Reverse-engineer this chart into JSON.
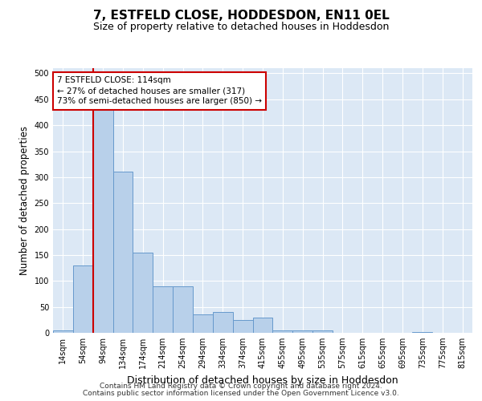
{
  "title": "7, ESTFELD CLOSE, HODDESDON, EN11 0EL",
  "subtitle": "Size of property relative to detached houses in Hoddesdon",
  "xlabel": "Distribution of detached houses by size in Hoddesdon",
  "ylabel": "Number of detached properties",
  "footer_line1": "Contains HM Land Registry data © Crown copyright and database right 2024.",
  "footer_line2": "Contains public sector information licensed under the Open Government Licence v3.0.",
  "bin_labels": [
    "14sqm",
    "54sqm",
    "94sqm",
    "134sqm",
    "174sqm",
    "214sqm",
    "254sqm",
    "294sqm",
    "334sqm",
    "374sqm",
    "415sqm",
    "455sqm",
    "495sqm",
    "535sqm",
    "575sqm",
    "615sqm",
    "655sqm",
    "695sqm",
    "735sqm",
    "775sqm",
    "815sqm"
  ],
  "bar_values": [
    5,
    130,
    430,
    310,
    155,
    90,
    90,
    35,
    40,
    25,
    30,
    5,
    5,
    5,
    0,
    0,
    0,
    0,
    2,
    0,
    0
  ],
  "bar_color": "#b8d0ea",
  "bar_edge_color": "#6699cc",
  "vline_x": 2.0,
  "vline_color": "#cc0000",
  "annotation_text": "7 ESTFELD CLOSE: 114sqm\n← 27% of detached houses are smaller (317)\n73% of semi-detached houses are larger (850) →",
  "annotation_box_color": "#ffffff",
  "annotation_box_edge": "#cc0000",
  "ylim": [
    0,
    510
  ],
  "yticks": [
    0,
    50,
    100,
    150,
    200,
    250,
    300,
    350,
    400,
    450,
    500
  ],
  "background_color": "#ffffff",
  "plot_bg_color": "#dce8f5",
  "grid_color": "#ffffff",
  "title_fontsize": 11,
  "subtitle_fontsize": 9,
  "axis_label_fontsize": 8.5,
  "tick_fontsize": 7,
  "annotation_fontsize": 7.5,
  "footer_fontsize": 6.5
}
